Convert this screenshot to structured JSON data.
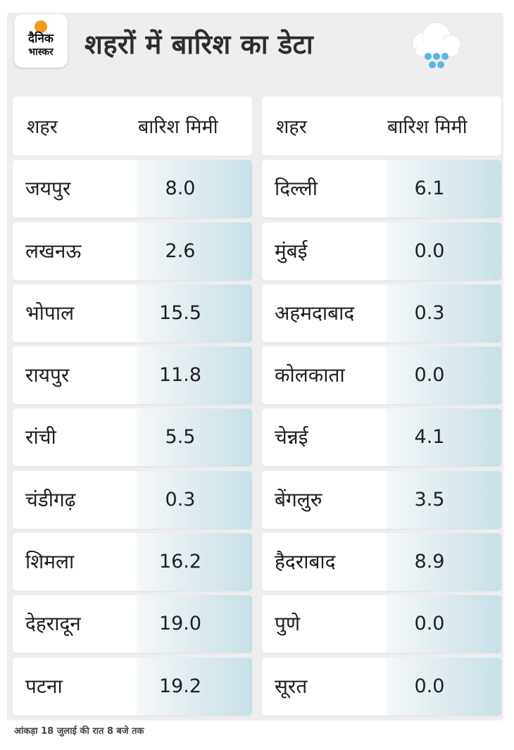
{
  "brand": {
    "line1": "दैनिक",
    "line2": "भास्कर",
    "dot_color": "#f39a1e"
  },
  "title": "शहरों में बारिश का डेटा",
  "header": {
    "city_label": "शहर",
    "rain_label": "बारिश मिमी"
  },
  "left_rows": [
    {
      "city": "जयपुर",
      "rain": "8.0"
    },
    {
      "city": "लखनऊ",
      "rain": "2.6"
    },
    {
      "city": "भोपाल",
      "rain": "15.5"
    },
    {
      "city": "रायपुर",
      "rain": "11.8"
    },
    {
      "city": "रांची",
      "rain": "5.5"
    },
    {
      "city": "चंडीगढ़",
      "rain": "0.3"
    },
    {
      "city": "शिमला",
      "rain": "16.2"
    },
    {
      "city": "देहरादून",
      "rain": "19.0"
    },
    {
      "city": "पटना",
      "rain": "19.2"
    }
  ],
  "right_rows": [
    {
      "city": "दिल्ली",
      "rain": "6.1"
    },
    {
      "city": "मुंबई",
      "rain": "0.0"
    },
    {
      "city": "अहमदाबाद",
      "rain": "0.3"
    },
    {
      "city": "कोलकाता",
      "rain": "0.0"
    },
    {
      "city": "चेन्नई",
      "rain": "4.1"
    },
    {
      "city": "बेंगलुरु",
      "rain": "3.5"
    },
    {
      "city": "हैदराबाद",
      "rain": "8.9"
    },
    {
      "city": "पुणे",
      "rain": "0.0"
    },
    {
      "city": "सूरत",
      "rain": "0.0"
    }
  ],
  "footnote": "आंकड़ा 18 जुलाई की रात 8 बजे तक",
  "icons": {
    "weather": "rain-cloud-icon"
  },
  "colors": {
    "title": "#2d2d2d",
    "rain_cell_gradient_end": "#c6dfe6",
    "rain_drop": "#5ab4e6"
  }
}
